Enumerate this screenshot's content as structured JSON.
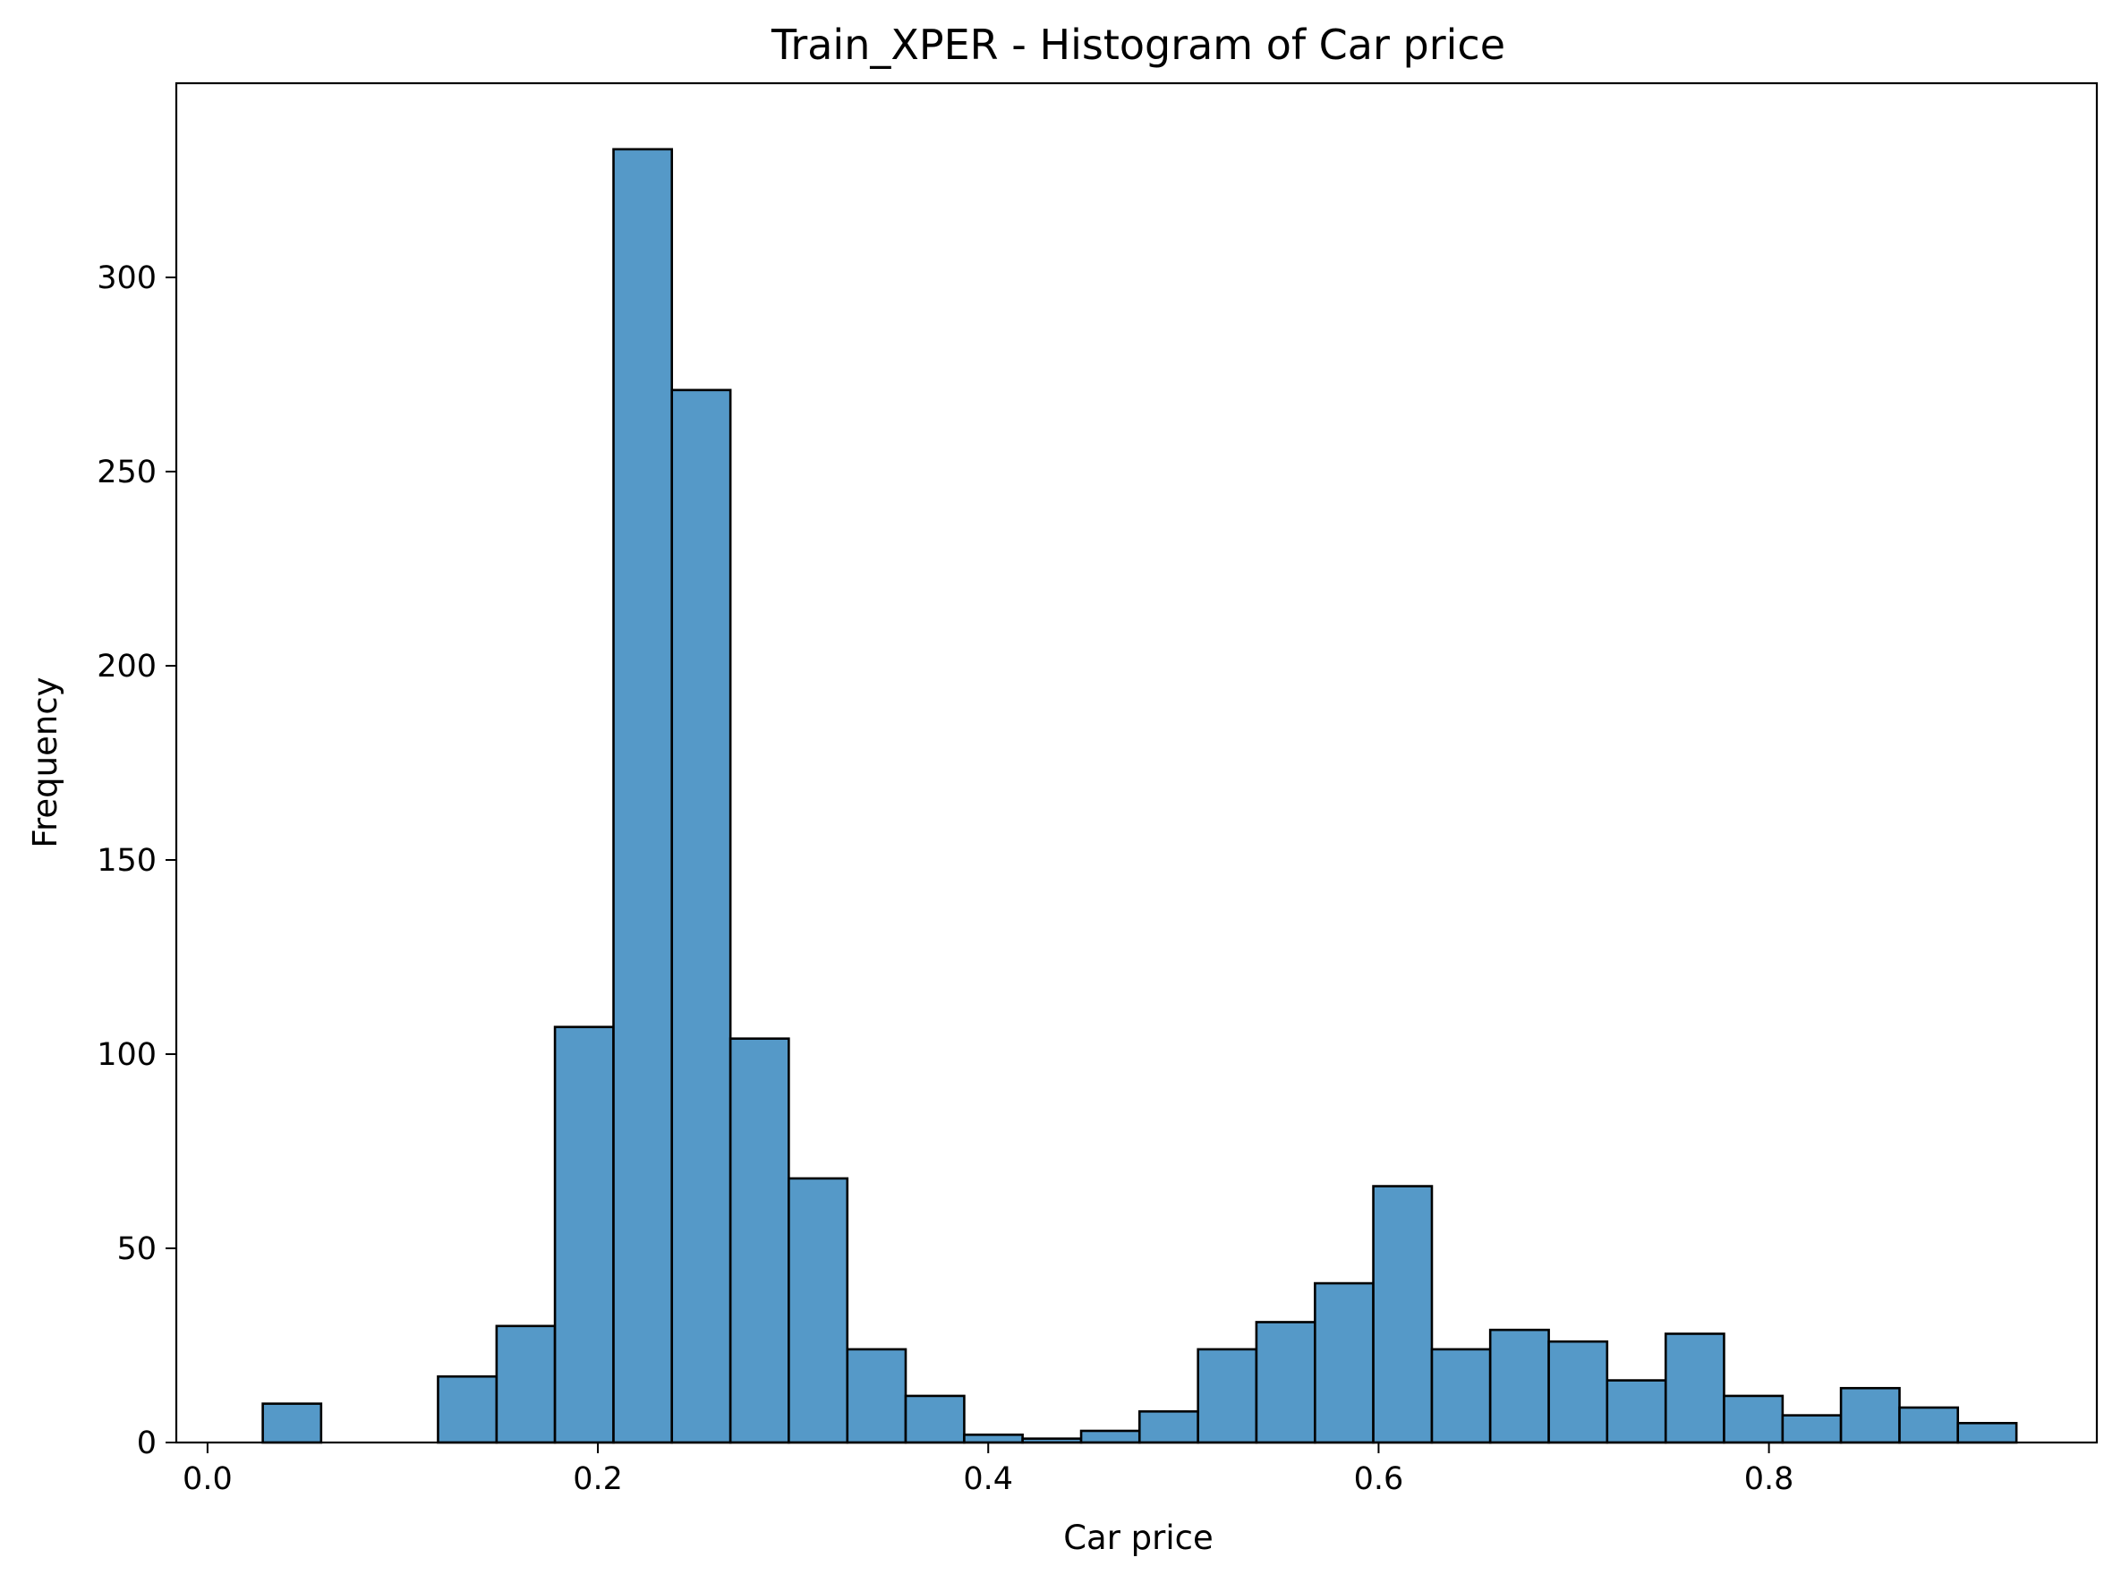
{
  "chart_data": {
    "type": "bar",
    "title": "Train_XPER - Histogram of Car price",
    "xlabel": "Car price",
    "ylabel": "Frequency",
    "xlim": [
      -0.016,
      0.968
    ],
    "ylim": [
      0,
      350
    ],
    "xticks": [
      "0.0",
      "0.2",
      "0.4",
      "0.6",
      "0.8"
    ],
    "xtick_values": [
      0.0,
      0.2,
      0.4,
      0.6,
      0.8
    ],
    "yticks": [
      "0",
      "50",
      "100",
      "150",
      "200",
      "250",
      "300"
    ],
    "ytick_values": [
      0,
      50,
      100,
      150,
      200,
      250,
      300
    ],
    "grid": false,
    "bar_color": "#5599c8",
    "edge_color": "#000000",
    "bins": [
      {
        "x0": 0.0283,
        "x1": 0.0582,
        "value": 10
      },
      {
        "x0": 0.0582,
        "x1": 0.0882,
        "value": 0
      },
      {
        "x0": 0.0882,
        "x1": 0.1181,
        "value": 0
      },
      {
        "x0": 0.1181,
        "x1": 0.1481,
        "value": 17
      },
      {
        "x0": 0.1481,
        "x1": 0.178,
        "value": 30
      },
      {
        "x0": 0.178,
        "x1": 0.208,
        "value": 107
      },
      {
        "x0": 0.208,
        "x1": 0.2379,
        "value": 333
      },
      {
        "x0": 0.2379,
        "x1": 0.2679,
        "value": 271
      },
      {
        "x0": 0.2679,
        "x1": 0.2978,
        "value": 104
      },
      {
        "x0": 0.2978,
        "x1": 0.3278,
        "value": 68
      },
      {
        "x0": 0.3278,
        "x1": 0.3577,
        "value": 24
      },
      {
        "x0": 0.3577,
        "x1": 0.3877,
        "value": 12
      },
      {
        "x0": 0.3877,
        "x1": 0.4176,
        "value": 2
      },
      {
        "x0": 0.4176,
        "x1": 0.4476,
        "value": 1
      },
      {
        "x0": 0.4476,
        "x1": 0.4775,
        "value": 3
      },
      {
        "x0": 0.4775,
        "x1": 0.5075,
        "value": 8
      },
      {
        "x0": 0.5075,
        "x1": 0.5374,
        "value": 24
      },
      {
        "x0": 0.5374,
        "x1": 0.5674,
        "value": 31
      },
      {
        "x0": 0.5674,
        "x1": 0.5973,
        "value": 41
      },
      {
        "x0": 0.5973,
        "x1": 0.6273,
        "value": 66
      },
      {
        "x0": 0.6273,
        "x1": 0.6572,
        "value": 24
      },
      {
        "x0": 0.6572,
        "x1": 0.6872,
        "value": 29
      },
      {
        "x0": 0.6872,
        "x1": 0.7171,
        "value": 26
      },
      {
        "x0": 0.7171,
        "x1": 0.7471,
        "value": 16
      },
      {
        "x0": 0.7471,
        "x1": 0.777,
        "value": 28
      },
      {
        "x0": 0.777,
        "x1": 0.807,
        "value": 12
      },
      {
        "x0": 0.807,
        "x1": 0.8369,
        "value": 7
      },
      {
        "x0": 0.8369,
        "x1": 0.8669,
        "value": 14
      },
      {
        "x0": 0.8669,
        "x1": 0.8968,
        "value": 9
      },
      {
        "x0": 0.8968,
        "x1": 0.9268,
        "value": 5
      }
    ]
  }
}
